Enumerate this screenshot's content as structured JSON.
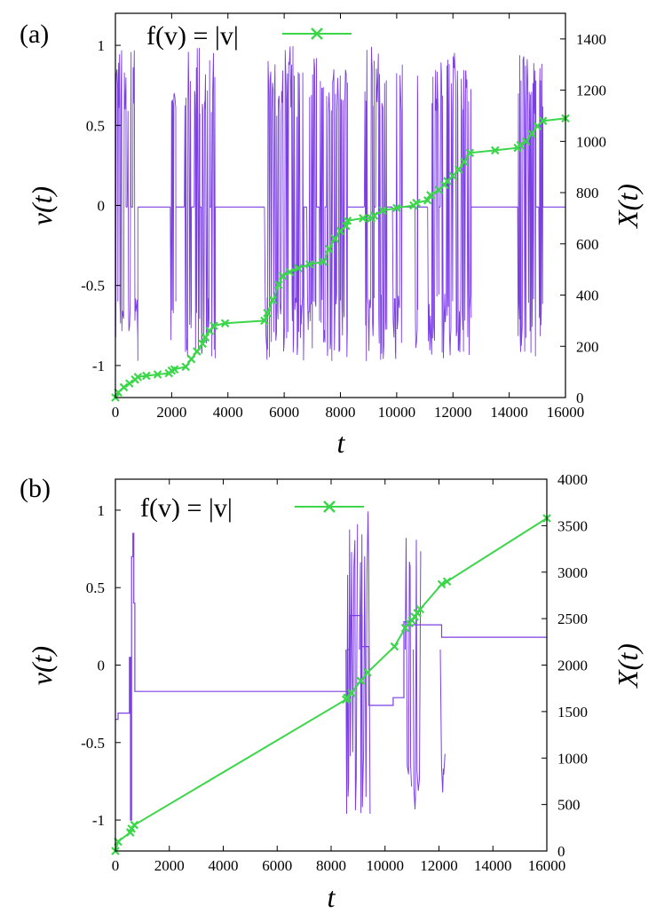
{
  "colors": {
    "velocity": "#7b3fe4",
    "position": "#3bd64a",
    "axes": "#000000"
  },
  "chart_data": [
    {
      "type": "line",
      "panel_label": "(a)",
      "xlabel": "t",
      "ylabel": "v(t)",
      "y2label": "X(t)",
      "legend": {
        "label": "f(v) = |v|",
        "placement": "top-left"
      },
      "xlim": [
        0,
        16000
      ],
      "ylim": [
        -1.2,
        1.2
      ],
      "y2lim": [
        0,
        1500
      ],
      "x_ticks": [
        "0",
        "2000",
        "4000",
        "6000",
        "8000",
        "10000",
        "12000",
        "14000",
        "16000"
      ],
      "y_ticks": [
        "1",
        "0.5",
        "0",
        "-0.5",
        "-1"
      ],
      "y2_ticks": [
        "1400",
        "1200",
        "1000",
        "800",
        "600",
        "400",
        "200",
        "0"
      ],
      "baseline_v": -0.01,
      "bursts": [
        [
          0,
          380
        ],
        [
          420,
          560
        ],
        [
          620,
          800
        ],
        [
          1950,
          2150
        ],
        [
          2450,
          2700
        ],
        [
          2800,
          3000
        ],
        [
          3050,
          3350
        ],
        [
          3400,
          3550
        ],
        [
          5300,
          6700
        ],
        [
          6800,
          7150
        ],
        [
          7250,
          7450
        ],
        [
          7500,
          8250
        ],
        [
          8850,
          9200
        ],
        [
          9250,
          9650
        ],
        [
          9850,
          10200
        ],
        [
          10650,
          10750
        ],
        [
          11100,
          11500
        ],
        [
          11550,
          12650
        ],
        [
          14300,
          14950
        ],
        [
          15050,
          15200
        ]
      ],
      "series": [
        {
          "name": "v(t)",
          "axis": "left",
          "style": "burst-trace"
        },
        {
          "name": "X(t)",
          "axis": "right",
          "marker": "x",
          "x": [
            0,
            100,
            300,
            500,
            700,
            800,
            1100,
            1500,
            1900,
            2000,
            2100,
            2500,
            2700,
            2900,
            3100,
            3200,
            3350,
            3500,
            3900,
            5300,
            5400,
            5600,
            5800,
            5950,
            6200,
            6500,
            6900,
            7400,
            7600,
            7800,
            8000,
            8200,
            8250,
            8800,
            9100,
            9200,
            9500,
            10000,
            10600,
            10700,
            11100,
            11200,
            11500,
            11700,
            11800,
            12000,
            12200,
            12400,
            12600,
            13500,
            14300,
            14400,
            14600,
            14800,
            15000,
            15200,
            16000
          ],
          "y": [
            0,
            20,
            40,
            55,
            70,
            80,
            85,
            90,
            95,
            105,
            110,
            120,
            150,
            180,
            210,
            235,
            260,
            280,
            290,
            300,
            330,
            380,
            440,
            475,
            490,
            505,
            520,
            530,
            580,
            620,
            650,
            670,
            690,
            700,
            700,
            710,
            730,
            740,
            750,
            760,
            770,
            790,
            810,
            830,
            845,
            865,
            890,
            920,
            955,
            965,
            975,
            985,
            1000,
            1030,
            1060,
            1080,
            1090
          ]
        }
      ]
    },
    {
      "type": "line",
      "panel_label": "(b)",
      "xlabel": "t",
      "ylabel": "v(t)",
      "y2label": "X(t)",
      "legend": {
        "label": "f(v) = |v|",
        "placement": "top-left"
      },
      "xlim": [
        0,
        16000
      ],
      "ylim": [
        -1.2,
        1.2
      ],
      "y2lim": [
        0,
        4000
      ],
      "x_ticks": [
        "0",
        "2000",
        "4000",
        "6000",
        "8000",
        "10000",
        "12000",
        "14000",
        "16000"
      ],
      "y_ticks": [
        "1",
        "0.5",
        "0",
        "-0.5",
        "-1"
      ],
      "y2_ticks": [
        "4000",
        "3500",
        "3000",
        "2500",
        "2000",
        "1500",
        "1000",
        "500",
        "0"
      ],
      "v_steps": [
        [
          0,
          -0.35
        ],
        [
          100,
          -0.31
        ],
        [
          520,
          0.05
        ],
        [
          560,
          -1.0
        ],
        [
          600,
          0.7
        ],
        [
          650,
          0.85
        ],
        [
          680,
          0.4
        ],
        [
          720,
          -0.17
        ],
        [
          8600,
          0.1
        ],
        [
          8700,
          0.32
        ],
        [
          9150,
          0.12
        ],
        [
          9400,
          -0.26
        ],
        [
          10300,
          -0.21
        ],
        [
          10700,
          0.28
        ],
        [
          10900,
          0.26
        ],
        [
          11300,
          0.26
        ],
        [
          12100,
          0.18
        ],
        [
          16000,
          0.18
        ]
      ],
      "bursts": [
        [
          8550,
          8950
        ],
        [
          9050,
          9400
        ],
        [
          10750,
          10950
        ],
        [
          11050,
          11300
        ],
        [
          12050,
          12200
        ]
      ],
      "series": [
        {
          "name": "v(t)",
          "axis": "left",
          "style": "piecewise"
        },
        {
          "name": "X(t)",
          "axis": "right",
          "marker": "x",
          "x": [
            0,
            100,
            550,
            600,
            700,
            8550,
            8600,
            8750,
            9100,
            9350,
            10350,
            10750,
            10900,
            11000,
            11100,
            11200,
            11300,
            12100,
            12300,
            16000
          ],
          "y": [
            0,
            100,
            200,
            240,
            280,
            1630,
            1650,
            1700,
            1830,
            1920,
            2200,
            2400,
            2450,
            2480,
            2520,
            2560,
            2600,
            2870,
            2900,
            3580
          ]
        }
      ]
    }
  ]
}
